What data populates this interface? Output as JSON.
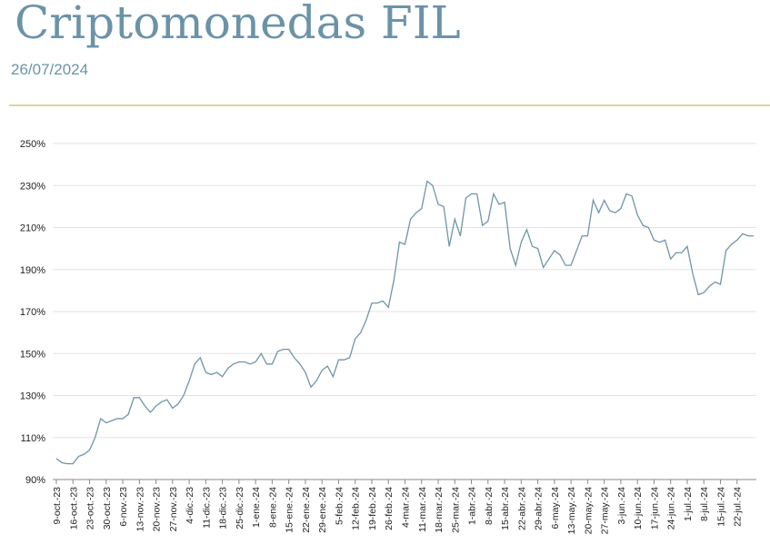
{
  "header": {
    "title": "Criptomonedas FIL",
    "date": "26/07/2024"
  },
  "chart_data": {
    "type": "line",
    "color": "#6f95a8",
    "grid": true,
    "ylim": [
      90,
      250
    ],
    "yticks": [
      {
        "value": 90,
        "label": "90%"
      },
      {
        "value": 110,
        "label": "110%"
      },
      {
        "value": 130,
        "label": "130%"
      },
      {
        "value": 150,
        "label": "150%"
      },
      {
        "value": 170,
        "label": "170%"
      },
      {
        "value": 190,
        "label": "190%"
      },
      {
        "value": 210,
        "label": "210%"
      },
      {
        "value": 230,
        "label": "230%"
      },
      {
        "value": 250,
        "label": "250%"
      }
    ],
    "categories": [
      "9-oct.-23",
      null,
      null,
      "16-oct.-23",
      null,
      null,
      "23-oct.-23",
      null,
      null,
      "30-oct.-23",
      null,
      null,
      "6-nov.-23",
      null,
      null,
      "13-nov.-23",
      null,
      null,
      "20-nov.-23",
      null,
      null,
      "27-nov.-23",
      null,
      null,
      "4-dic.-23",
      null,
      null,
      "11-dic.-23",
      null,
      null,
      "18-dic.-23",
      null,
      null,
      "25-dic.-23",
      null,
      null,
      "1-ene.-24",
      null,
      null,
      "8-ene.-24",
      null,
      null,
      "15-ene.-24",
      null,
      null,
      "22-ene.-24",
      null,
      null,
      "29-ene.-24",
      null,
      null,
      "5-feb.-24",
      null,
      null,
      "12-feb.-24",
      null,
      null,
      "19-feb.-24",
      null,
      null,
      "26-feb.-24",
      null,
      null,
      "4-mar.-24",
      null,
      null,
      "11-mar.-24",
      null,
      null,
      "18-mar.-24",
      null,
      null,
      "25-mar.-24",
      null,
      null,
      "1-abr.-24",
      null,
      null,
      "8-abr.-24",
      null,
      null,
      "15-abr.-24",
      null,
      null,
      "22-abr.-24",
      null,
      null,
      "29-abr.-24",
      null,
      null,
      "6-may.-24",
      null,
      null,
      "13-may.-24",
      null,
      null,
      "20-may.-24",
      null,
      null,
      "27-may.-24",
      null,
      null,
      "3-jun.-24",
      null,
      null,
      "10-jun.-24",
      null,
      null,
      "17-jun.-24",
      null,
      null,
      "24-jun.-24",
      null,
      null,
      "1-jul.-24",
      null,
      null,
      "8-jul.-24",
      null,
      null,
      "15-jul.-24",
      null,
      null,
      "22-jul.-24",
      null,
      null,
      null
    ],
    "values": [
      100,
      98,
      97.5,
      97.5,
      101,
      102,
      104,
      110,
      119,
      117,
      118,
      119,
      119,
      121,
      129,
      129,
      125,
      122,
      125,
      127,
      128,
      124,
      126,
      130,
      137,
      145,
      148,
      141,
      140,
      141,
      139,
      143,
      145,
      146,
      146,
      145,
      146,
      150,
      145,
      145,
      151,
      152,
      152,
      148,
      145,
      141,
      134,
      137,
      142,
      144,
      139,
      147,
      147,
      148,
      157,
      160,
      166,
      174,
      174,
      175,
      172,
      185,
      203,
      202,
      214,
      217,
      219,
      232,
      230,
      221,
      220,
      201,
      214,
      206,
      224,
      226,
      226,
      211,
      213,
      226,
      221,
      222,
      200,
      192,
      203,
      209,
      201,
      200,
      191,
      195,
      199,
      197,
      192,
      192,
      199,
      206,
      206,
      223,
      217,
      223,
      218,
      217,
      219,
      226,
      225,
      216,
      211,
      210,
      204,
      203,
      204,
      195,
      198,
      198,
      201,
      188,
      178,
      179,
      182,
      184,
      183,
      199,
      202,
      204,
      207,
      206,
      206
    ]
  }
}
